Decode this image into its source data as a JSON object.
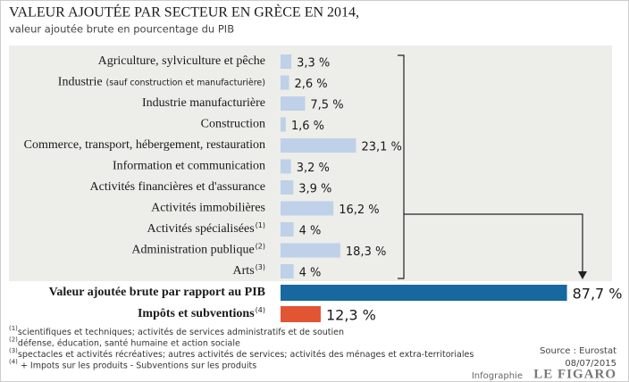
{
  "chart_data": {
    "type": "bar",
    "orientation": "horizontal",
    "title": "VALEUR AJOUTÉE PAR SECTEUR EN GRÈCE EN 2014,",
    "subtitle": "valeur ajoutée brute en pourcentage du PIB",
    "categories": [
      "Agriculture, sylviculture et pêche",
      "Industrie",
      "Industrie manufacturière",
      "Construction",
      "Commerce, transport, hébergement, restauration",
      "Information et communication",
      "Activités financières et d'assurance",
      "Activités immobilières",
      "Activités spécialisées",
      "Administration publique",
      "Arts"
    ],
    "category_notes": [
      null,
      "(sauf construction et manufacturière)",
      null,
      null,
      null,
      null,
      null,
      null,
      "(1)",
      "(2)",
      "(3)"
    ],
    "values": [
      3.3,
      2.6,
      7.5,
      1.6,
      23.1,
      3.2,
      3.9,
      16.2,
      4,
      18.3,
      4
    ],
    "value_labels": [
      "3,3 %",
      "2,6 %",
      "7,5 %",
      "1,6 %",
      "23,1 %",
      "3,2 %",
      "3,9 %",
      "16,2 %",
      "4 %",
      "18,3 %",
      "4 %"
    ],
    "color": "#bed1e8",
    "xlim": [
      0,
      90
    ],
    "totals": {
      "categories": [
        "Valeur ajoutée brute par rapport au PIB",
        "Impôts et subventions"
      ],
      "category_notes": [
        null,
        "(4)"
      ],
      "values": [
        87.7,
        12.3
      ],
      "value_labels": [
        "87,7 %",
        "12,3 %"
      ],
      "colors": [
        "#1868a0",
        "#e15533"
      ]
    },
    "notes": [
      {
        "mark": "(1)",
        "text": "scientifiques et techniques; activités de services administratifs et de soutien"
      },
      {
        "mark": "(2)",
        "text": "défense, éducation, santé humaine et action sociale"
      },
      {
        "mark": "(3)",
        "text": "spectacles et activités récréatives; autres activités de services; activités des ménages et extra-territoriales"
      },
      {
        "mark": "(4)",
        "text": " + Impots sur les produits - Subventions sur les produits"
      }
    ],
    "source": "Source : Eurostat",
    "date": "08/07/2015",
    "credit": "Infographie",
    "brand": "LE FIGARO"
  }
}
